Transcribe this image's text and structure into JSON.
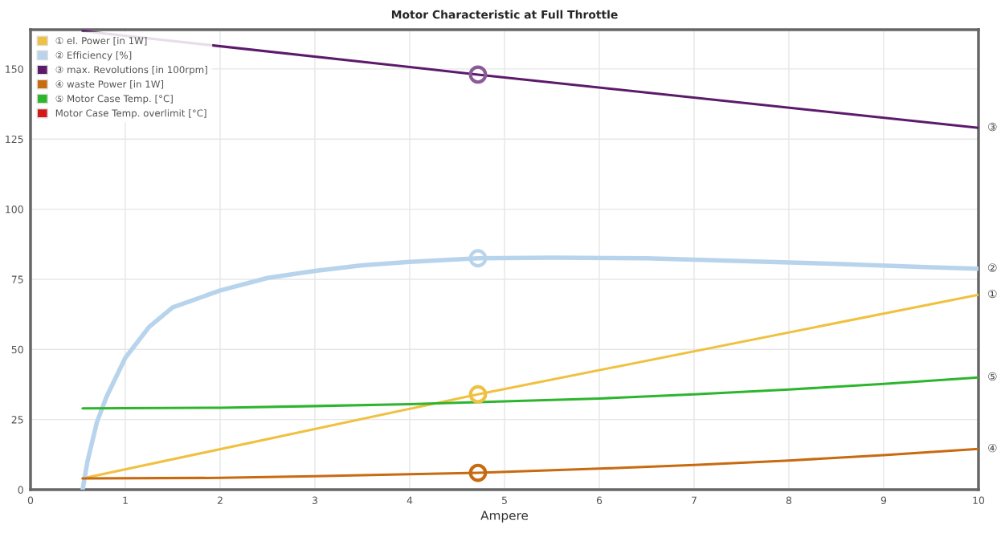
{
  "chart_data": {
    "type": "line",
    "title": "Motor Characteristic at Full Throttle",
    "xlabel": "Ampere",
    "xlim": [
      0,
      10
    ],
    "xticks": [
      0,
      1,
      2,
      3,
      4,
      5,
      6,
      7,
      8,
      9,
      10
    ],
    "ylim": [
      0,
      164
    ],
    "yticks": [
      0,
      25,
      50,
      75,
      100,
      125,
      150
    ],
    "grid": true,
    "legend": "top left",
    "marker": "none",
    "line_style": "solid",
    "series": [
      {
        "name": "① el. Power [in 1W]",
        "color": "#f0c040",
        "x": [
          0.55,
          4.72,
          10
        ],
        "values": [
          4,
          34,
          69.5
        ]
      },
      {
        "name": "② Efficiency [%]",
        "color": "#b8d4ec",
        "x": [
          0.55,
          0.6,
          0.7,
          0.8,
          1.0,
          1.25,
          1.5,
          2,
          2.5,
          3,
          3.5,
          4,
          4.72,
          5.5,
          6.5,
          7.5,
          8.5,
          9.5,
          10
        ],
        "values": [
          0,
          10,
          24,
          33,
          47,
          58,
          65,
          71,
          75.5,
          78,
          80,
          81.2,
          82.5,
          82.7,
          82.5,
          81.5,
          80.5,
          79.3,
          78.8
        ]
      },
      {
        "name": "③ max. Revolutions [in 100rpm]",
        "color": "#5c1a6b",
        "x": [
          0.55,
          4.72,
          10
        ],
        "values": [
          163.5,
          148,
          129
        ]
      },
      {
        "name": "④ waste Power [in 1W]",
        "color": "#c86a10",
        "x": [
          0.55,
          2,
          3,
          4,
          4.72,
          6,
          7,
          8,
          9,
          10
        ],
        "values": [
          4,
          4.2,
          4.8,
          5.5,
          6,
          7.5,
          8.8,
          10.4,
          12.3,
          14.5
        ]
      },
      {
        "name": "⑤ Motor Case Temp. [°C]",
        "color": "#2db52d",
        "x": [
          0.55,
          2,
          3,
          4,
          5,
          6,
          7,
          8,
          9,
          10
        ],
        "values": [
          29,
          29.2,
          29.8,
          30.5,
          31.5,
          32.5,
          34,
          35.7,
          37.7,
          40
        ]
      },
      {
        "name": "Motor Case Temp. overlimit [°C]",
        "color": "#d41818"
      },
      {
        "type": "scatter",
        "marker": "circle",
        "x": [
          4.72,
          4.72,
          4.72,
          4.72
        ],
        "values": [
          34,
          82.5,
          148,
          6
        ],
        "colors": [
          "#f0c040",
          "#b8d4ec",
          "#8a5a9a",
          "#c86a10"
        ]
      }
    ],
    "annotations": [
      "①",
      "②",
      "③",
      "④",
      "⑤"
    ]
  }
}
